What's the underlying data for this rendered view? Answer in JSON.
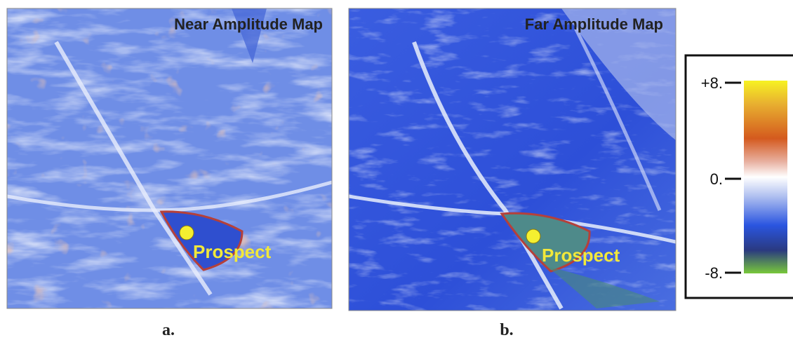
{
  "panels": [
    {
      "title": "Near Amplitude Map",
      "annotation": "Prospect",
      "caption": "a."
    },
    {
      "title": "Far Amplitude Map",
      "annotation": "Prospect",
      "caption": "b."
    }
  ],
  "colorbar": {
    "ticks": [
      "+8.",
      "0.",
      "-8."
    ]
  }
}
